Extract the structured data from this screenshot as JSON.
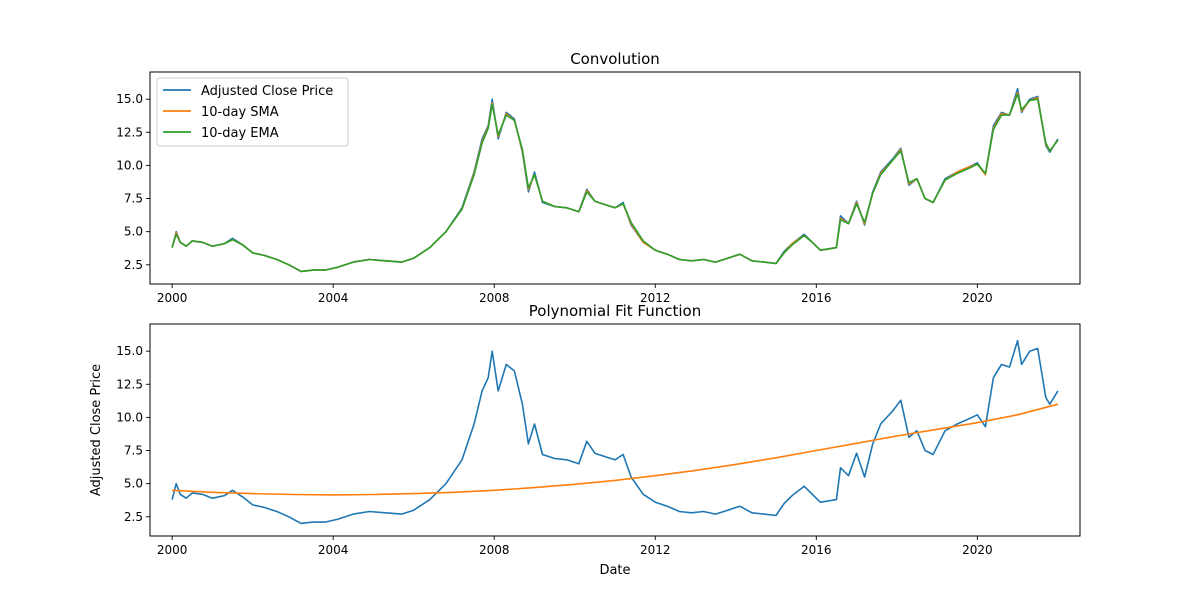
{
  "figure": {
    "background": "#ffffff",
    "series_colors": {
      "Adjusted Close Price": "#1f77b4",
      "10-day SMA": "#ff7f0e",
      "10-day EMA": "#2ca02c",
      "Polynomial Fit": "#ff7f0e"
    }
  },
  "chart_data": [
    {
      "id": "convolution",
      "type": "line",
      "title": "Convolution",
      "xlabel": "",
      "ylabel": "",
      "xlim": [
        1999.45,
        2022.55
      ],
      "ylim": [
        1.05,
        17.05
      ],
      "x_ticks": [
        2000,
        2004,
        2008,
        2012,
        2016,
        2020
      ],
      "x_tick_labels": [
        "2000",
        "2004",
        "2008",
        "2012",
        "2016",
        "2020"
      ],
      "y_ticks": [
        2.5,
        5.0,
        7.5,
        10.0,
        12.5,
        15.0
      ],
      "y_tick_labels": [
        "2.5",
        "5.0",
        "7.5",
        "10.0",
        "12.5",
        "15.0"
      ],
      "grid": false,
      "legend": {
        "placement": "upper left",
        "entries": [
          "Adjusted Close Price",
          "10-day SMA",
          "10-day EMA"
        ]
      },
      "series": [
        {
          "name": "Adjusted Close Price",
          "color": "#1f77b4",
          "x": [
            2000.0,
            2000.1,
            2000.2,
            2000.35,
            2000.5,
            2000.75,
            2001.0,
            2001.3,
            2001.5,
            2001.75,
            2002.0,
            2002.3,
            2002.6,
            2002.9,
            2003.2,
            2003.5,
            2003.8,
            2004.1,
            2004.5,
            2004.9,
            2005.3,
            2005.7,
            2006.0,
            2006.4,
            2006.8,
            2007.2,
            2007.5,
            2007.7,
            2007.85,
            2007.95,
            2008.1,
            2008.3,
            2008.5,
            2008.7,
            2008.85,
            2009.0,
            2009.2,
            2009.5,
            2009.8,
            2010.1,
            2010.3,
            2010.5,
            2010.8,
            2011.0,
            2011.2,
            2011.4,
            2011.7,
            2012.0,
            2012.3,
            2012.6,
            2012.9,
            2013.2,
            2013.5,
            2013.8,
            2014.1,
            2014.4,
            2014.7,
            2015.0,
            2015.2,
            2015.4,
            2015.7,
            2015.9,
            2016.1,
            2016.3,
            2016.5,
            2016.6,
            2016.8,
            2017.0,
            2017.2,
            2017.4,
            2017.6,
            2017.9,
            2018.1,
            2018.3,
            2018.5,
            2018.7,
            2018.9,
            2019.2,
            2019.5,
            2019.8,
            2020.0,
            2020.2,
            2020.4,
            2020.6,
            2020.8,
            2021.0,
            2021.1,
            2021.3,
            2021.5,
            2021.7,
            2021.8,
            2022.0
          ],
          "y": [
            3.8,
            5.0,
            4.2,
            3.9,
            4.3,
            4.2,
            3.9,
            4.1,
            4.5,
            4.0,
            3.4,
            3.2,
            2.9,
            2.5,
            2.0,
            2.1,
            2.1,
            2.3,
            2.7,
            2.9,
            2.8,
            2.7,
            3.0,
            3.8,
            5.0,
            6.8,
            9.5,
            12.0,
            13.0,
            15.0,
            12.0,
            14.0,
            13.5,
            11.0,
            8.0,
            9.5,
            7.2,
            6.9,
            6.8,
            6.5,
            8.2,
            7.3,
            7.0,
            6.8,
            7.2,
            5.5,
            4.2,
            3.6,
            3.3,
            2.9,
            2.8,
            2.9,
            2.7,
            3.0,
            3.3,
            2.8,
            2.7,
            2.6,
            3.5,
            4.1,
            4.8,
            4.2,
            3.6,
            3.7,
            3.8,
            6.2,
            5.6,
            7.3,
            5.5,
            8.0,
            9.5,
            10.5,
            11.3,
            8.5,
            9.0,
            7.5,
            7.2,
            9.0,
            9.5,
            9.9,
            10.2,
            9.3,
            13.0,
            14.0,
            13.8,
            15.8,
            14.0,
            15.0,
            15.2,
            11.5,
            11.0,
            12.0
          ]
        },
        {
          "name": "10-day SMA",
          "color": "#ff7f0e",
          "x": [
            2000.0,
            2000.1,
            2000.2,
            2000.35,
            2000.5,
            2000.75,
            2001.0,
            2001.3,
            2001.5,
            2001.75,
            2002.0,
            2002.3,
            2002.6,
            2002.9,
            2003.2,
            2003.5,
            2003.8,
            2004.1,
            2004.5,
            2004.9,
            2005.3,
            2005.7,
            2006.0,
            2006.4,
            2006.8,
            2007.2,
            2007.5,
            2007.7,
            2007.85,
            2007.95,
            2008.1,
            2008.3,
            2008.5,
            2008.7,
            2008.85,
            2009.0,
            2009.2,
            2009.5,
            2009.8,
            2010.1,
            2010.3,
            2010.5,
            2010.8,
            2011.0,
            2011.2,
            2011.4,
            2011.7,
            2012.0,
            2012.3,
            2012.6,
            2012.9,
            2013.2,
            2013.5,
            2013.8,
            2014.1,
            2014.4,
            2014.7,
            2015.0,
            2015.2,
            2015.4,
            2015.7,
            2015.9,
            2016.1,
            2016.3,
            2016.5,
            2016.6,
            2016.8,
            2017.0,
            2017.2,
            2017.4,
            2017.6,
            2017.9,
            2018.1,
            2018.3,
            2018.5,
            2018.7,
            2018.9,
            2019.2,
            2019.5,
            2019.8,
            2020.0,
            2020.2,
            2020.4,
            2020.6,
            2020.8,
            2021.0,
            2021.1,
            2021.3,
            2021.5,
            2021.7,
            2021.8,
            2022.0
          ],
          "y": [
            3.8,
            4.9,
            4.2,
            3.9,
            4.3,
            4.2,
            3.9,
            4.1,
            4.4,
            4.0,
            3.4,
            3.2,
            2.9,
            2.5,
            2.0,
            2.1,
            2.1,
            2.3,
            2.7,
            2.9,
            2.8,
            2.7,
            3.0,
            3.8,
            5.0,
            6.7,
            9.4,
            11.8,
            12.9,
            14.7,
            12.2,
            13.9,
            13.4,
            11.1,
            8.2,
            9.3,
            7.3,
            6.9,
            6.8,
            6.5,
            8.1,
            7.3,
            7.0,
            6.8,
            7.1,
            5.6,
            4.2,
            3.6,
            3.3,
            2.9,
            2.8,
            2.9,
            2.7,
            3.0,
            3.3,
            2.8,
            2.7,
            2.6,
            3.4,
            4.1,
            4.7,
            4.2,
            3.6,
            3.7,
            3.8,
            6.0,
            5.6,
            7.2,
            5.6,
            7.9,
            9.4,
            10.4,
            11.2,
            8.6,
            9.0,
            7.5,
            7.2,
            8.9,
            9.5,
            9.9,
            10.1,
            9.3,
            12.8,
            13.9,
            13.8,
            15.5,
            14.1,
            14.9,
            15.1,
            11.6,
            11.1,
            11.9
          ]
        },
        {
          "name": "10-day EMA",
          "color": "#2ca02c",
          "x": [
            2000.0,
            2000.1,
            2000.2,
            2000.35,
            2000.5,
            2000.75,
            2001.0,
            2001.3,
            2001.5,
            2001.75,
            2002.0,
            2002.3,
            2002.6,
            2002.9,
            2003.2,
            2003.5,
            2003.8,
            2004.1,
            2004.5,
            2004.9,
            2005.3,
            2005.7,
            2006.0,
            2006.4,
            2006.8,
            2007.2,
            2007.5,
            2007.7,
            2007.85,
            2007.95,
            2008.1,
            2008.3,
            2008.5,
            2008.7,
            2008.85,
            2009.0,
            2009.2,
            2009.5,
            2009.8,
            2010.1,
            2010.3,
            2010.5,
            2010.8,
            2011.0,
            2011.2,
            2011.4,
            2011.7,
            2012.0,
            2012.3,
            2012.6,
            2012.9,
            2013.2,
            2013.5,
            2013.8,
            2014.1,
            2014.4,
            2014.7,
            2015.0,
            2015.2,
            2015.4,
            2015.7,
            2015.9,
            2016.1,
            2016.3,
            2016.5,
            2016.6,
            2016.8,
            2017.0,
            2017.2,
            2017.4,
            2017.6,
            2017.9,
            2018.1,
            2018.3,
            2018.5,
            2018.7,
            2018.9,
            2019.2,
            2019.5,
            2019.8,
            2020.0,
            2020.2,
            2020.4,
            2020.6,
            2020.8,
            2021.0,
            2021.1,
            2021.3,
            2021.5,
            2021.7,
            2021.8,
            2022.0
          ],
          "y": [
            3.8,
            4.8,
            4.2,
            3.9,
            4.3,
            4.2,
            3.9,
            4.1,
            4.4,
            4.0,
            3.4,
            3.2,
            2.9,
            2.5,
            2.0,
            2.1,
            2.1,
            2.3,
            2.7,
            2.9,
            2.8,
            2.7,
            3.0,
            3.8,
            5.0,
            6.7,
            9.3,
            11.7,
            12.8,
            14.6,
            12.3,
            13.8,
            13.4,
            11.2,
            8.3,
            9.3,
            7.3,
            6.9,
            6.8,
            6.5,
            8.0,
            7.3,
            7.0,
            6.8,
            7.1,
            5.7,
            4.3,
            3.6,
            3.3,
            2.9,
            2.8,
            2.9,
            2.7,
            3.0,
            3.3,
            2.8,
            2.7,
            2.6,
            3.4,
            4.0,
            4.7,
            4.2,
            3.6,
            3.7,
            3.8,
            5.9,
            5.6,
            7.1,
            5.7,
            7.9,
            9.3,
            10.4,
            11.1,
            8.7,
            9.0,
            7.5,
            7.2,
            8.9,
            9.4,
            9.8,
            10.1,
            9.4,
            12.7,
            13.8,
            13.8,
            15.4,
            14.2,
            14.9,
            15.0,
            11.7,
            11.1,
            11.9
          ]
        }
      ]
    },
    {
      "id": "polyfit",
      "type": "line",
      "title": "Polynomial Fit Function",
      "xlabel": "Date",
      "ylabel": "Adjusted Close Price",
      "xlim": [
        1999.45,
        2022.55
      ],
      "ylim": [
        1.05,
        17.05
      ],
      "x_ticks": [
        2000,
        2004,
        2008,
        2012,
        2016,
        2020
      ],
      "x_tick_labels": [
        "2000",
        "2004",
        "2008",
        "2012",
        "2016",
        "2020"
      ],
      "y_ticks": [
        2.5,
        5.0,
        7.5,
        10.0,
        12.5,
        15.0
      ],
      "y_tick_labels": [
        "2.5",
        "5.0",
        "7.5",
        "10.0",
        "12.5",
        "15.0"
      ],
      "grid": false,
      "series": [
        {
          "color": "#1f77b4",
          "x": [
            2000.0,
            2000.1,
            2000.2,
            2000.35,
            2000.5,
            2000.75,
            2001.0,
            2001.3,
            2001.5,
            2001.75,
            2002.0,
            2002.3,
            2002.6,
            2002.9,
            2003.2,
            2003.5,
            2003.8,
            2004.1,
            2004.5,
            2004.9,
            2005.3,
            2005.7,
            2006.0,
            2006.4,
            2006.8,
            2007.2,
            2007.5,
            2007.7,
            2007.85,
            2007.95,
            2008.1,
            2008.3,
            2008.5,
            2008.7,
            2008.85,
            2009.0,
            2009.2,
            2009.5,
            2009.8,
            2010.1,
            2010.3,
            2010.5,
            2010.8,
            2011.0,
            2011.2,
            2011.4,
            2011.7,
            2012.0,
            2012.3,
            2012.6,
            2012.9,
            2013.2,
            2013.5,
            2013.8,
            2014.1,
            2014.4,
            2014.7,
            2015.0,
            2015.2,
            2015.4,
            2015.7,
            2015.9,
            2016.1,
            2016.3,
            2016.5,
            2016.6,
            2016.8,
            2017.0,
            2017.2,
            2017.4,
            2017.6,
            2017.9,
            2018.1,
            2018.3,
            2018.5,
            2018.7,
            2018.9,
            2019.2,
            2019.5,
            2019.8,
            2020.0,
            2020.2,
            2020.4,
            2020.6,
            2020.8,
            2021.0,
            2021.1,
            2021.3,
            2021.5,
            2021.7,
            2021.8,
            2022.0
          ],
          "y": [
            3.8,
            5.0,
            4.2,
            3.9,
            4.3,
            4.2,
            3.9,
            4.1,
            4.5,
            4.0,
            3.4,
            3.2,
            2.9,
            2.5,
            2.0,
            2.1,
            2.1,
            2.3,
            2.7,
            2.9,
            2.8,
            2.7,
            3.0,
            3.8,
            5.0,
            6.8,
            9.5,
            12.0,
            13.0,
            15.0,
            12.0,
            14.0,
            13.5,
            11.0,
            8.0,
            9.5,
            7.2,
            6.9,
            6.8,
            6.5,
            8.2,
            7.3,
            7.0,
            6.8,
            7.2,
            5.5,
            4.2,
            3.6,
            3.3,
            2.9,
            2.8,
            2.9,
            2.7,
            3.0,
            3.3,
            2.8,
            2.7,
            2.6,
            3.5,
            4.1,
            4.8,
            4.2,
            3.6,
            3.7,
            3.8,
            6.2,
            5.6,
            7.3,
            5.5,
            8.0,
            9.5,
            10.5,
            11.3,
            8.5,
            9.0,
            7.5,
            7.2,
            9.0,
            9.5,
            9.9,
            10.2,
            9.3,
            13.0,
            14.0,
            13.8,
            15.8,
            14.0,
            15.0,
            15.2,
            11.5,
            11.0,
            12.0
          ]
        },
        {
          "color": "#ff7f0e",
          "x": [
            2000,
            2001,
            2002,
            2003,
            2004,
            2005,
            2006,
            2007,
            2008,
            2009,
            2010,
            2011,
            2012,
            2013,
            2014,
            2015,
            2016,
            2017,
            2018,
            2019,
            2020,
            2021,
            2022
          ],
          "y": [
            4.5,
            4.35,
            4.25,
            4.18,
            4.15,
            4.18,
            4.25,
            4.35,
            4.5,
            4.7,
            4.95,
            5.25,
            5.6,
            6.0,
            6.45,
            6.95,
            7.5,
            8.05,
            8.6,
            9.1,
            9.6,
            10.2,
            11.0
          ]
        }
      ]
    }
  ]
}
